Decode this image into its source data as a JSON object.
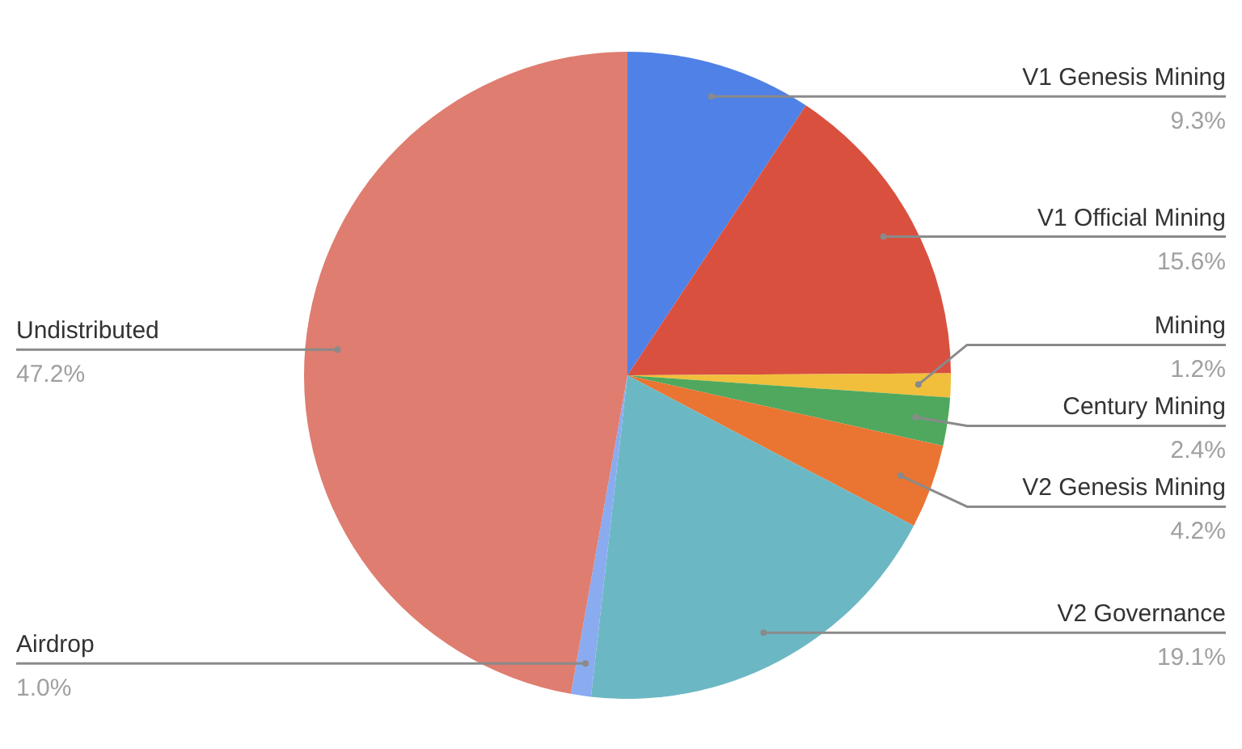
{
  "chart_data": {
    "type": "pie",
    "categories": [
      "V1 Genesis Mining",
      "V1 Official Mining",
      "Mining",
      "Century Mining",
      "V2 Genesis Mining",
      "V2 Governance",
      "Airdrop",
      "Undistributed"
    ],
    "values": [
      9.3,
      15.6,
      1.2,
      2.4,
      4.2,
      19.1,
      1.0,
      47.2
    ],
    "value_labels": [
      "9.3%",
      "15.6%",
      "1.2%",
      "2.4%",
      "4.2%",
      "19.1%",
      "1.0%",
      "47.2%"
    ],
    "colors": [
      "#4f81e6",
      "#d9503f",
      "#f1bf3c",
      "#4fa85e",
      "#ea7432",
      "#6bb8c4",
      "#8aabf0",
      "#de7d70"
    ]
  }
}
